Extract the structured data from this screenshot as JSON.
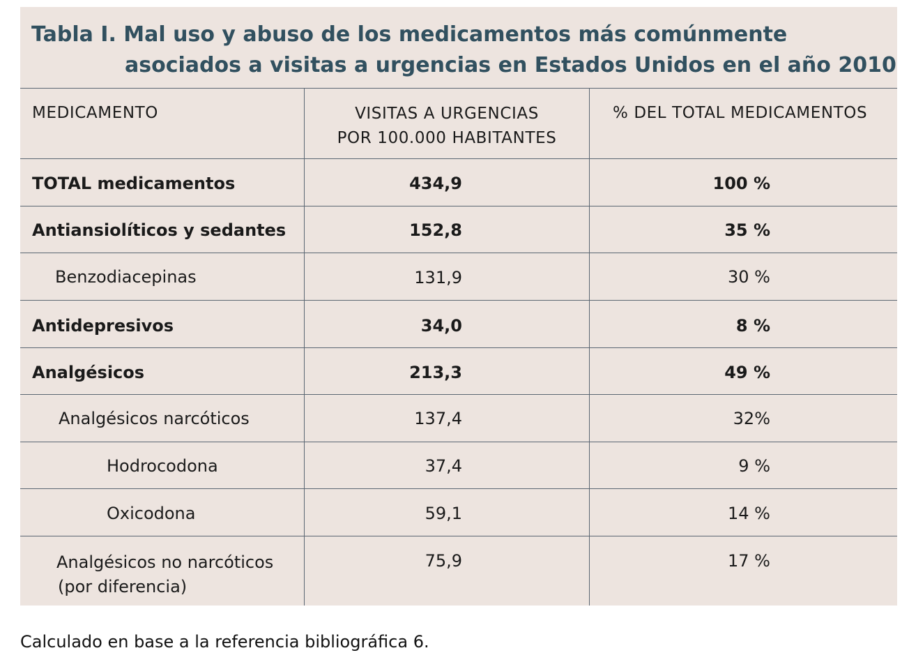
{
  "title": {
    "line1": "Tabla I. Mal uso y abuso de los medicamentos más comúnmente",
    "line2": "asociados a visitas a urgencias en Estados Unidos en el año 2010"
  },
  "header": {
    "col1": "MEDICAMENTO",
    "col2_line1": "VISITAS A URGENCIAS",
    "col2_line2": "POR 100.000 HABITANTES",
    "col3": "% DEL TOTAL MEDICAMENTOS"
  },
  "rows": [
    {
      "name": "TOTAL medicamentos",
      "visits": "434,9",
      "pct": "100 %"
    },
    {
      "name": "Antiansiolíticos y sedantes",
      "visits": "152,8",
      "pct": "35 %"
    },
    {
      "name": "Benzodiacepinas",
      "visits": "131,9",
      "pct": "30 %"
    },
    {
      "name": "Antidepresivos",
      "visits": "34,0",
      "pct": "8 %"
    },
    {
      "name": "Analgésicos",
      "visits": "213,3",
      "pct": "49 %"
    },
    {
      "name": "Analgésicos narcóticos",
      "visits": "137,4",
      "pct": "32%"
    },
    {
      "name": "Hodrocodona",
      "visits": "37,4",
      "pct": "9 %"
    },
    {
      "name": "Oxicodona",
      "visits": "59,1",
      "pct": "14 %"
    },
    {
      "name_line1": "Analgésicos no narcóticos",
      "name_line2": "(por diferencia)",
      "visits": "75,9",
      "pct": "17 %"
    }
  ],
  "caption": "Calculado en base a la referencia bibliográfica 6."
}
